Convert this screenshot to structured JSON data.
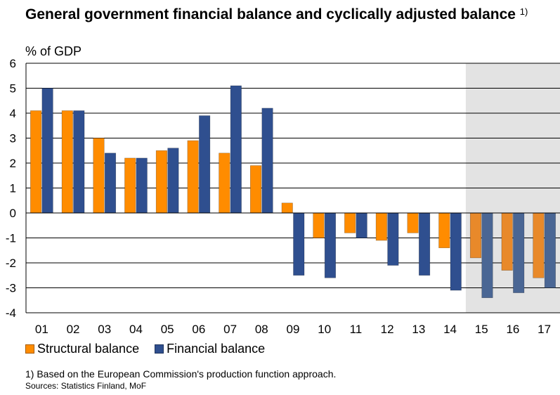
{
  "header": {
    "title": "General government financial balance and cyclically adjusted balance",
    "title_note": "1)",
    "unit": "% of GDP"
  },
  "footer": {
    "footnote": "1) Based on the European Commission's production function approach.",
    "sources": "Sources: Statistics Finland, MoF"
  },
  "colors": {
    "structural": "#ff8c00",
    "financial": "#2f4f8f",
    "structural_forecast": "#e8892a",
    "financial_forecast": "#4a6694",
    "forecast_shade": "#e3e3e3",
    "grid": "#000000"
  },
  "chart_data": {
    "type": "bar",
    "categories": [
      "01",
      "02",
      "03",
      "04",
      "05",
      "06",
      "07",
      "08",
      "09",
      "10",
      "11",
      "12",
      "13",
      "14",
      "15",
      "16",
      "17"
    ],
    "series": [
      {
        "name": "Structural balance",
        "values": [
          4.1,
          4.1,
          3.0,
          2.2,
          2.5,
          2.9,
          2.4,
          1.9,
          0.4,
          -1.0,
          -0.8,
          -1.1,
          -0.8,
          -1.4,
          -1.8,
          -2.3,
          -2.6
        ]
      },
      {
        "name": "Financial balance",
        "values": [
          5.0,
          4.1,
          2.4,
          2.2,
          2.6,
          3.9,
          5.1,
          4.2,
          -2.5,
          -2.6,
          -1.0,
          -2.1,
          -2.5,
          -3.1,
          -3.4,
          -3.2,
          -3.0
        ]
      }
    ],
    "ylim": [
      -4,
      6
    ],
    "yticks": [
      -4,
      -3,
      -2,
      -1,
      0,
      1,
      2,
      3,
      4,
      5,
      6
    ],
    "grid": true,
    "forecast_categories": [
      "15",
      "16",
      "17"
    ],
    "legend_position": "bottom-left"
  }
}
